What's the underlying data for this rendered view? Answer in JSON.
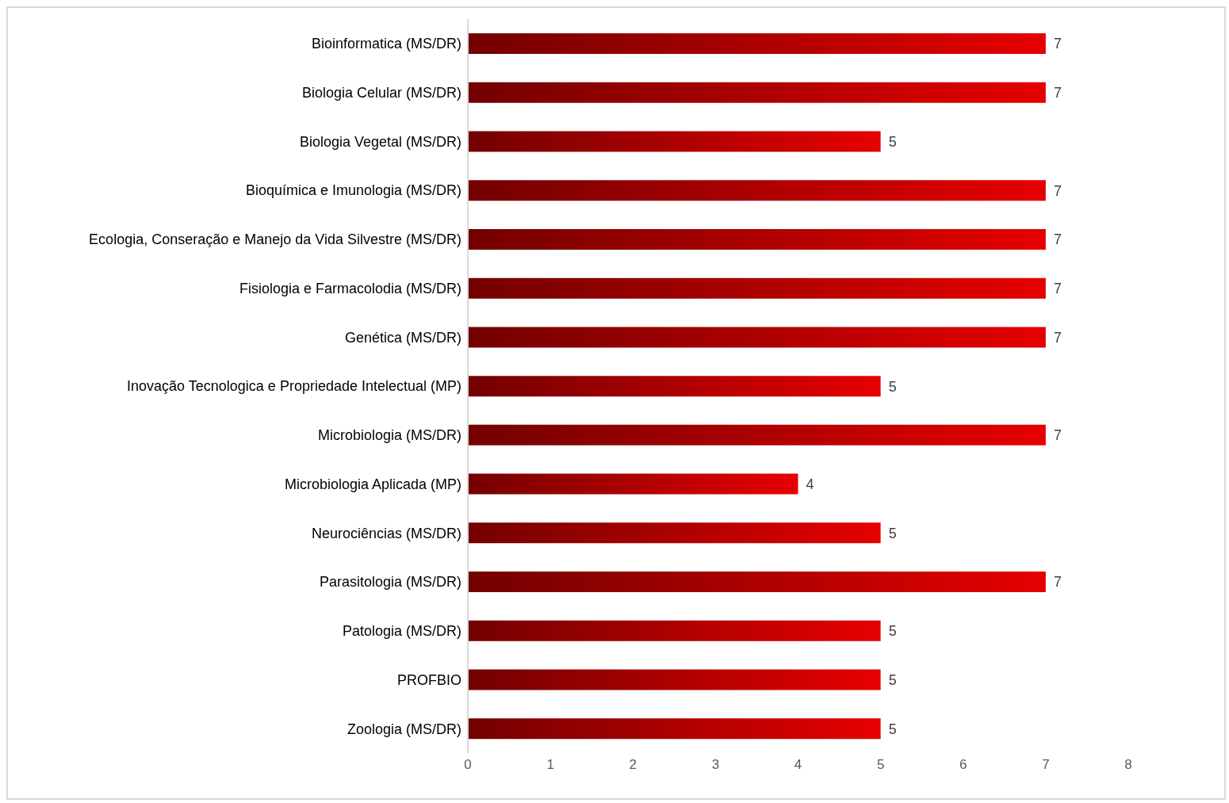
{
  "chart_data": {
    "type": "bar",
    "orientation": "horizontal",
    "categories": [
      "Bioinformatica (MS/DR)",
      "Biologia Celular (MS/DR)",
      "Biologia Vegetal (MS/DR)",
      "Bioquímica e Imunologia (MS/DR)",
      "Ecologia, Conseração e Manejo da Vida Silvestre (MS/DR)",
      "Fisiologia e Farmacolodia (MS/DR)",
      "Genética (MS/DR)",
      "Inovação Tecnologica e Propriedade Intelectual (MP)",
      "Microbiologia (MS/DR)",
      "Microbiologia Aplicada (MP)",
      "Neurociências (MS/DR)",
      "Parasitologia (MS/DR)",
      "Patologia (MS/DR)",
      "PROFBIO",
      "Zoologia (MS/DR)"
    ],
    "values": [
      7,
      7,
      5,
      7,
      7,
      7,
      7,
      5,
      7,
      4,
      5,
      7,
      5,
      5,
      5
    ],
    "color": "#e60000",
    "xlim": [
      0,
      8
    ],
    "xticks": [
      0,
      1,
      2,
      3,
      4,
      5,
      6,
      7,
      8
    ],
    "grid": false,
    "data_labels": true
  }
}
